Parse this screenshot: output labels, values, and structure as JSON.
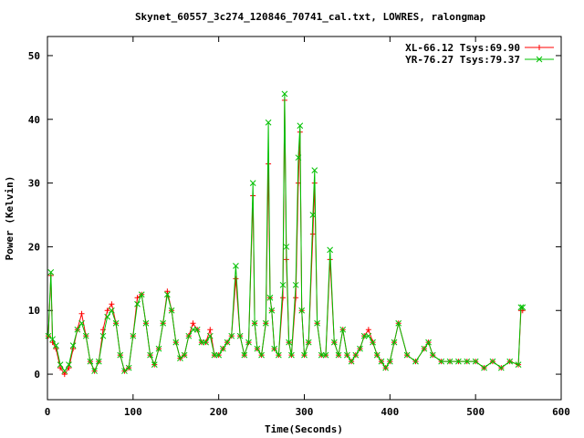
{
  "chart_data": {
    "type": "line",
    "title": "Skynet_60557_3c274_120846_70741_cal.txt, LOWRES, ralongmap",
    "xlabel": "Time(Seconds)",
    "ylabel": "Power (Kelvin)",
    "xlim": [
      0,
      600
    ],
    "ylim": [
      -4,
      53
    ],
    "xticks": [
      0,
      100,
      200,
      300,
      400,
      500,
      600
    ],
    "yticks": [
      0,
      10,
      20,
      30,
      40,
      50
    ],
    "grid": false,
    "legend_position": "top-right",
    "series": [
      {
        "name": "XL-66.12 Tsys:69.90",
        "color": "#ff0000",
        "marker": "plus",
        "x": [
          1,
          4,
          6,
          10,
          15,
          20,
          25,
          30,
          35,
          40,
          45,
          50,
          55,
          60,
          65,
          70,
          75,
          80,
          85,
          90,
          95,
          100,
          105,
          110,
          115,
          120,
          125,
          130,
          135,
          140,
          145,
          150,
          155,
          160,
          165,
          170,
          175,
          180,
          185,
          190,
          195,
          200,
          205,
          210,
          215,
          220,
          225,
          230,
          235,
          240,
          242,
          245,
          250,
          255,
          258,
          260,
          262,
          265,
          270,
          275,
          277,
          279,
          282,
          285,
          290,
          293,
          295,
          297,
          300,
          305,
          310,
          312,
          315,
          320,
          325,
          330,
          335,
          340,
          345,
          350,
          355,
          360,
          365,
          370,
          375,
          380,
          385,
          390,
          395,
          400,
          405,
          410,
          420,
          430,
          440,
          445,
          450,
          460,
          470,
          480,
          490,
          500,
          510,
          520,
          530,
          540,
          550,
          553,
          555
        ],
        "y": [
          6,
          15.5,
          5,
          4,
          1,
          0,
          1,
          4,
          7,
          9.5,
          6,
          2,
          0.5,
          2,
          7,
          10,
          11,
          8,
          3,
          0.5,
          1,
          6,
          12,
          12.5,
          8,
          3,
          1.5,
          4,
          8,
          13,
          10,
          5,
          2.5,
          3,
          6,
          8,
          7,
          5,
          5,
          7,
          3,
          3,
          4,
          5,
          6,
          15,
          6,
          3,
          5,
          28,
          8,
          4,
          3,
          8,
          33,
          12,
          10,
          4,
          3,
          12,
          43,
          18,
          5,
          3,
          12,
          30,
          38,
          10,
          3,
          5,
          22,
          30,
          8,
          3,
          3,
          18,
          5,
          3,
          7,
          3,
          2,
          3,
          4,
          6,
          7,
          5,
          3,
          2,
          1,
          2,
          5,
          8,
          3,
          2,
          4,
          5,
          3,
          2,
          2,
          2,
          2,
          2,
          1,
          2,
          1,
          2,
          1.5,
          10,
          10
        ]
      },
      {
        "name": "YR-76.27 Tsys:79.37",
        "color": "#00c000",
        "marker": "cross",
        "x": [
          1,
          4,
          6,
          10,
          15,
          20,
          25,
          30,
          35,
          40,
          45,
          50,
          55,
          60,
          65,
          70,
          75,
          80,
          85,
          90,
          95,
          100,
          105,
          110,
          115,
          120,
          125,
          130,
          135,
          140,
          145,
          150,
          155,
          160,
          165,
          170,
          175,
          180,
          185,
          190,
          195,
          200,
          205,
          210,
          215,
          220,
          225,
          230,
          235,
          240,
          242,
          245,
          250,
          255,
          258,
          260,
          262,
          265,
          270,
          275,
          277,
          279,
          282,
          285,
          290,
          293,
          295,
          297,
          300,
          305,
          310,
          312,
          315,
          320,
          325,
          330,
          335,
          340,
          345,
          350,
          355,
          360,
          365,
          370,
          375,
          380,
          385,
          390,
          395,
          400,
          405,
          410,
          420,
          430,
          440,
          445,
          450,
          460,
          470,
          480,
          490,
          500,
          510,
          520,
          530,
          540,
          550,
          553,
          555
        ],
        "y": [
          6,
          16,
          5.5,
          4.5,
          1.5,
          0.5,
          1.5,
          4.5,
          7,
          8,
          6,
          2,
          0.5,
          2,
          6,
          9,
          10,
          8,
          3,
          0.5,
          1,
          6,
          11,
          12.5,
          8,
          3,
          1.5,
          4,
          8,
          12.5,
          10,
          5,
          2.5,
          3,
          6,
          7,
          7,
          5,
          5,
          6,
          3,
          3,
          4,
          5,
          6,
          17,
          6,
          3,
          5,
          30,
          8,
          4,
          3,
          8,
          39.5,
          12,
          10,
          4,
          3,
          14,
          44,
          20,
          5,
          3,
          14,
          34,
          39,
          10,
          3,
          5,
          25,
          32,
          8,
          3,
          3,
          19.5,
          5,
          3,
          7,
          3,
          2,
          3,
          4,
          6,
          6,
          5,
          3,
          2,
          1,
          2,
          5,
          8,
          3,
          2,
          4,
          5,
          3,
          2,
          2,
          2,
          2,
          2,
          1,
          2,
          1,
          2,
          1.5,
          10.5,
          10.5
        ]
      }
    ]
  }
}
